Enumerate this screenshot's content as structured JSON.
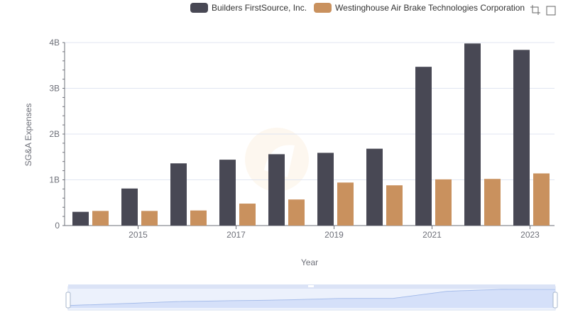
{
  "chart_data": {
    "type": "bar",
    "categories": [
      "2014",
      "2015",
      "2016",
      "2017",
      "2018",
      "2019",
      "2020",
      "2021",
      "2022",
      "2023"
    ],
    "x_tick_labels": [
      "2015",
      "2017",
      "2019",
      "2021",
      "2023"
    ],
    "series": [
      {
        "name": "Builders FirstSource, Inc.",
        "color": "#484854",
        "values": [
          0.3,
          0.81,
          1.36,
          1.44,
          1.56,
          1.59,
          1.68,
          3.47,
          3.98,
          3.84
        ]
      },
      {
        "name": "Westinghouse Air Brake Technologies Corporation",
        "color": "#c9915e",
        "values": [
          0.32,
          0.32,
          0.33,
          0.48,
          0.57,
          0.94,
          0.88,
          1.01,
          1.02,
          1.14
        ]
      }
    ],
    "y_unit": "B",
    "y_ticks": [
      0,
      1,
      2,
      3,
      4
    ],
    "y_tick_labels": [
      "0",
      "1B",
      "2B",
      "3B",
      "4B"
    ],
    "ylim": [
      0,
      4
    ],
    "xlabel": "Year",
    "ylabel": "SG&A Expenses",
    "grid": true,
    "legend_position": "top-right",
    "datazoom": {
      "start": 0,
      "end": 100
    }
  },
  "toolbox": {
    "icons": [
      "zoom-icon",
      "restore-icon"
    ]
  }
}
